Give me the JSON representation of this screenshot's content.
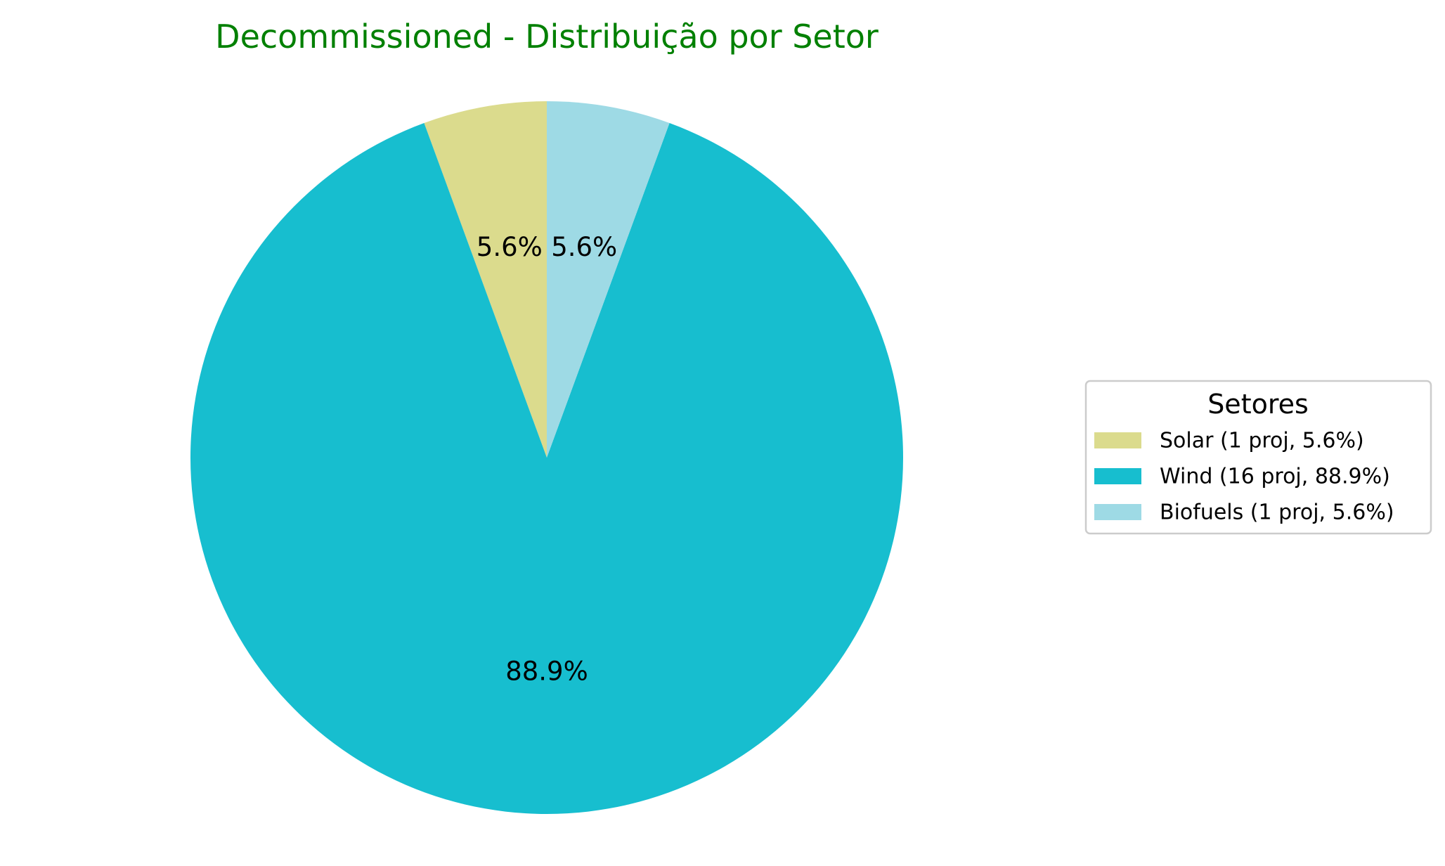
{
  "chart_data": {
    "type": "pie",
    "title": "Decommissioned - Distribuição por Setor",
    "title_color": "#008000",
    "slices": [
      {
        "label": "Solar",
        "projects": 1,
        "percent": 5.6,
        "pct_label": "5.6%",
        "legend_label": "Solar (1 proj, 5.6%)",
        "color": "#dbdb8d"
      },
      {
        "label": "Wind",
        "projects": 16,
        "percent": 88.9,
        "pct_label": "88.9%",
        "legend_label": "Wind (16 proj, 88.9%)",
        "color": "#17becf"
      },
      {
        "label": "Biofuels",
        "projects": 1,
        "percent": 5.6,
        "pct_label": "5.6%",
        "legend_label": "Biofuels (1 proj, 5.6%)",
        "color": "#9edae5"
      }
    ],
    "start_angle_deg": 90,
    "direction": "counterclockwise",
    "legend": {
      "title": "Setores",
      "placement": "right"
    }
  }
}
